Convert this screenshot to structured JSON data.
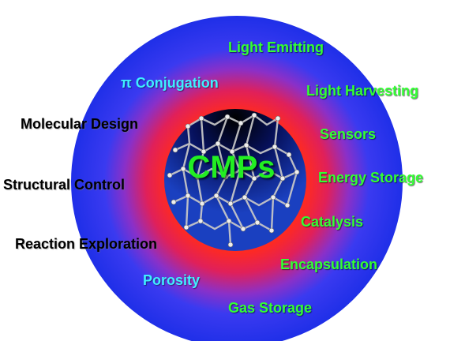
{
  "center": {
    "title": "CMPs"
  },
  "design_labels": [
    "π Conjugation",
    "Molecular Design",
    "Structural Control",
    "Reaction Exploration",
    "Porosity"
  ],
  "application_labels": [
    "Light Emitting",
    "Light Harvesting",
    "Sensors",
    "Energy Storage",
    "Catalysis",
    "Encapsulation",
    "Gas Storage"
  ],
  "colors": {
    "outer_ring": "#2233ee",
    "middle_ring": "#ff2a2a",
    "core": "#0a1a6a",
    "application_text": "#33ff33",
    "cyan_text": "#3ff0ff",
    "black_text": "#000000"
  }
}
